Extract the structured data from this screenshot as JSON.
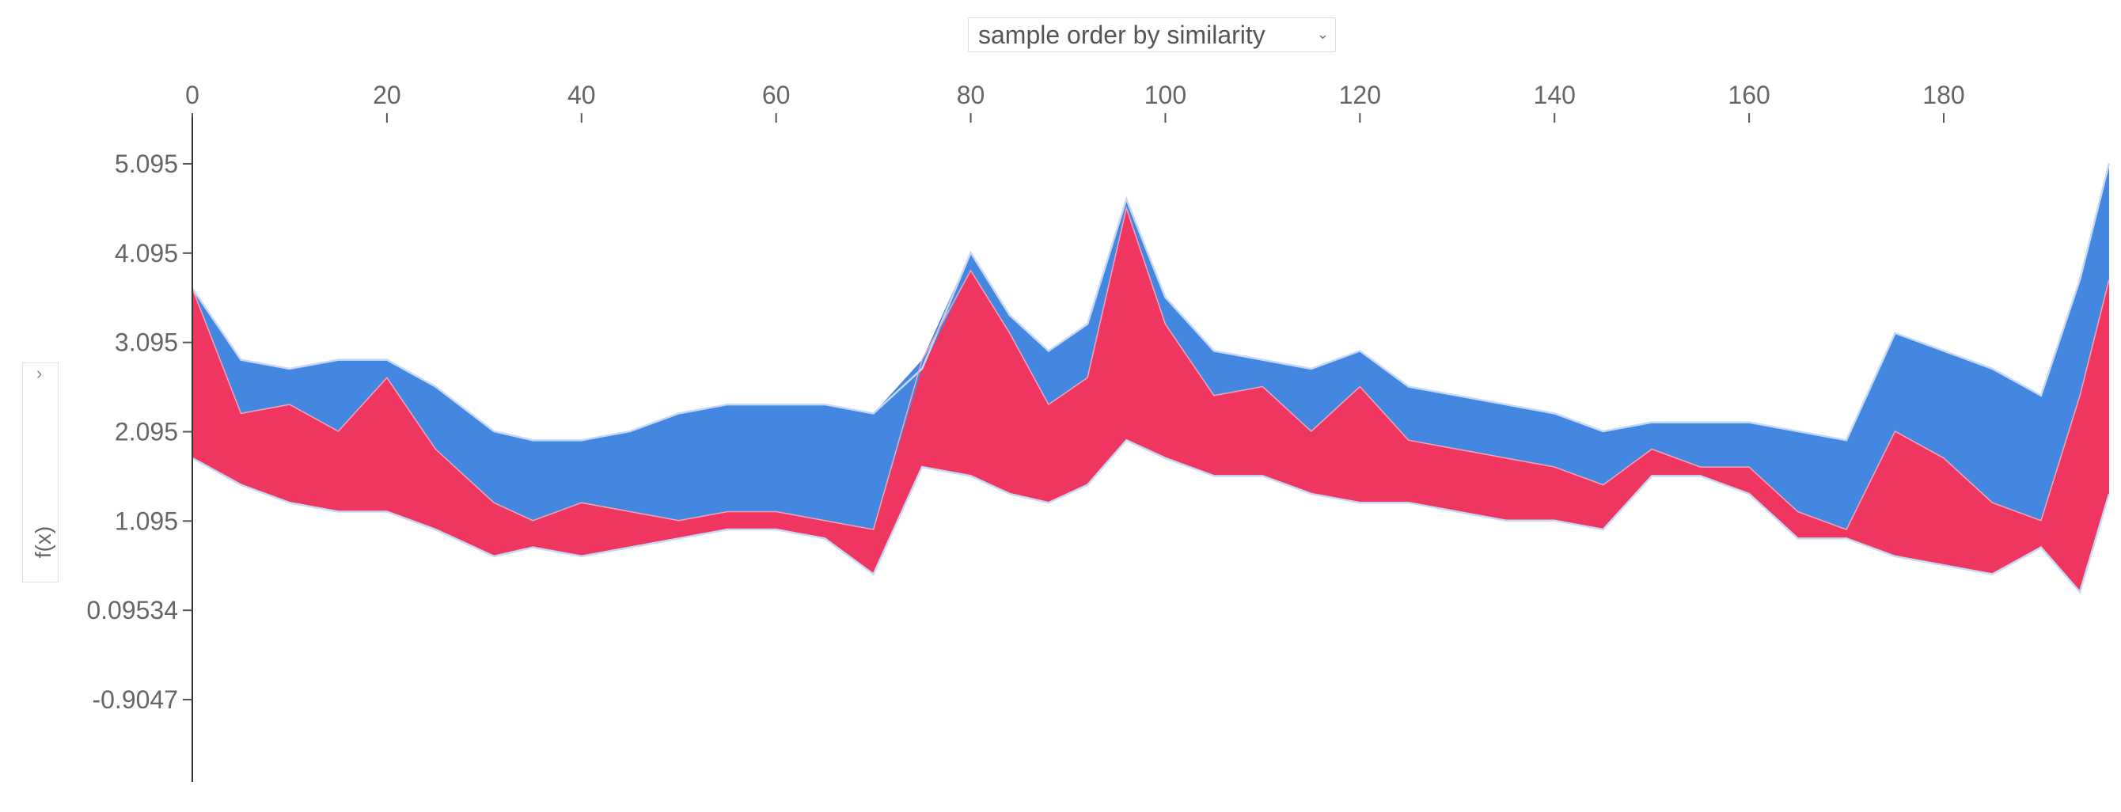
{
  "controls": {
    "order_select_label": "sample order by similarity",
    "order_select_chevron": "chevron-down-icon",
    "toggle_chevron": "chevron-right-icon"
  },
  "chart_data": {
    "type": "area",
    "title": "",
    "xlabel": "",
    "ylabel": "f(x)",
    "xlim": [
      0,
      197
    ],
    "ylim": [
      -1.8,
      5.6
    ],
    "x_ticks": [
      0,
      20,
      40,
      60,
      80,
      100,
      120,
      140,
      160,
      180
    ],
    "y_ticks": [
      5.095,
      4.095,
      3.095,
      2.095,
      1.095,
      0.09534,
      -0.9047
    ],
    "y_tick_labels": [
      "5.095",
      "4.095",
      "3.095",
      "2.095",
      "1.095",
      "0.09534",
      "-0.9047"
    ],
    "colors": {
      "positive": "#ee3660",
      "negative": "#4487e0",
      "edge": "#c5d8f5",
      "axis": "#333333"
    },
    "x": [
      0,
      5,
      10,
      15,
      20,
      25,
      31,
      35,
      40,
      45,
      50,
      55,
      60,
      65,
      70,
      75,
      80,
      84,
      88,
      92,
      96,
      100,
      105,
      110,
      115,
      120,
      125,
      130,
      135,
      140,
      145,
      150,
      155,
      160,
      165,
      170,
      175,
      180,
      185,
      190,
      194,
      197
    ],
    "output": [
      3.7,
      2.9,
      2.8,
      2.9,
      2.9,
      2.6,
      2.1,
      2.0,
      2.0,
      2.1,
      2.3,
      2.4,
      2.4,
      2.4,
      2.3,
      2.8,
      4.1,
      3.4,
      3.0,
      3.3,
      4.7,
      3.6,
      3.0,
      2.9,
      2.8,
      3.0,
      2.6,
      2.5,
      2.4,
      2.3,
      2.1,
      2.2,
      2.2,
      2.2,
      2.1,
      2.0,
      3.2,
      3.0,
      2.8,
      2.5,
      3.8,
      5.1
    ],
    "red_top": [
      3.7,
      2.3,
      2.4,
      2.1,
      2.7,
      1.9,
      1.3,
      1.1,
      1.3,
      1.2,
      1.1,
      1.2,
      1.2,
      1.1,
      1.0,
      2.9,
      3.9,
      3.2,
      2.4,
      2.7,
      4.6,
      3.3,
      2.5,
      2.6,
      2.1,
      2.6,
      2.0,
      1.9,
      1.8,
      1.7,
      1.5,
      1.9,
      1.7,
      1.7,
      1.2,
      1.0,
      2.1,
      1.8,
      1.3,
      1.1,
      2.5,
      3.8
    ],
    "base": [
      1.8,
      1.5,
      1.3,
      1.2,
      1.2,
      1.0,
      0.7,
      0.8,
      0.7,
      0.8,
      0.9,
      1.0,
      1.0,
      0.9,
      0.5,
      1.7,
      1.6,
      1.4,
      1.3,
      1.5,
      2.0,
      1.8,
      1.6,
      1.6,
      1.4,
      1.3,
      1.3,
      1.2,
      1.1,
      1.1,
      1.0,
      1.6,
      1.6,
      1.4,
      0.9,
      0.9,
      0.7,
      0.6,
      0.5,
      0.8,
      0.3,
      1.4
    ]
  }
}
